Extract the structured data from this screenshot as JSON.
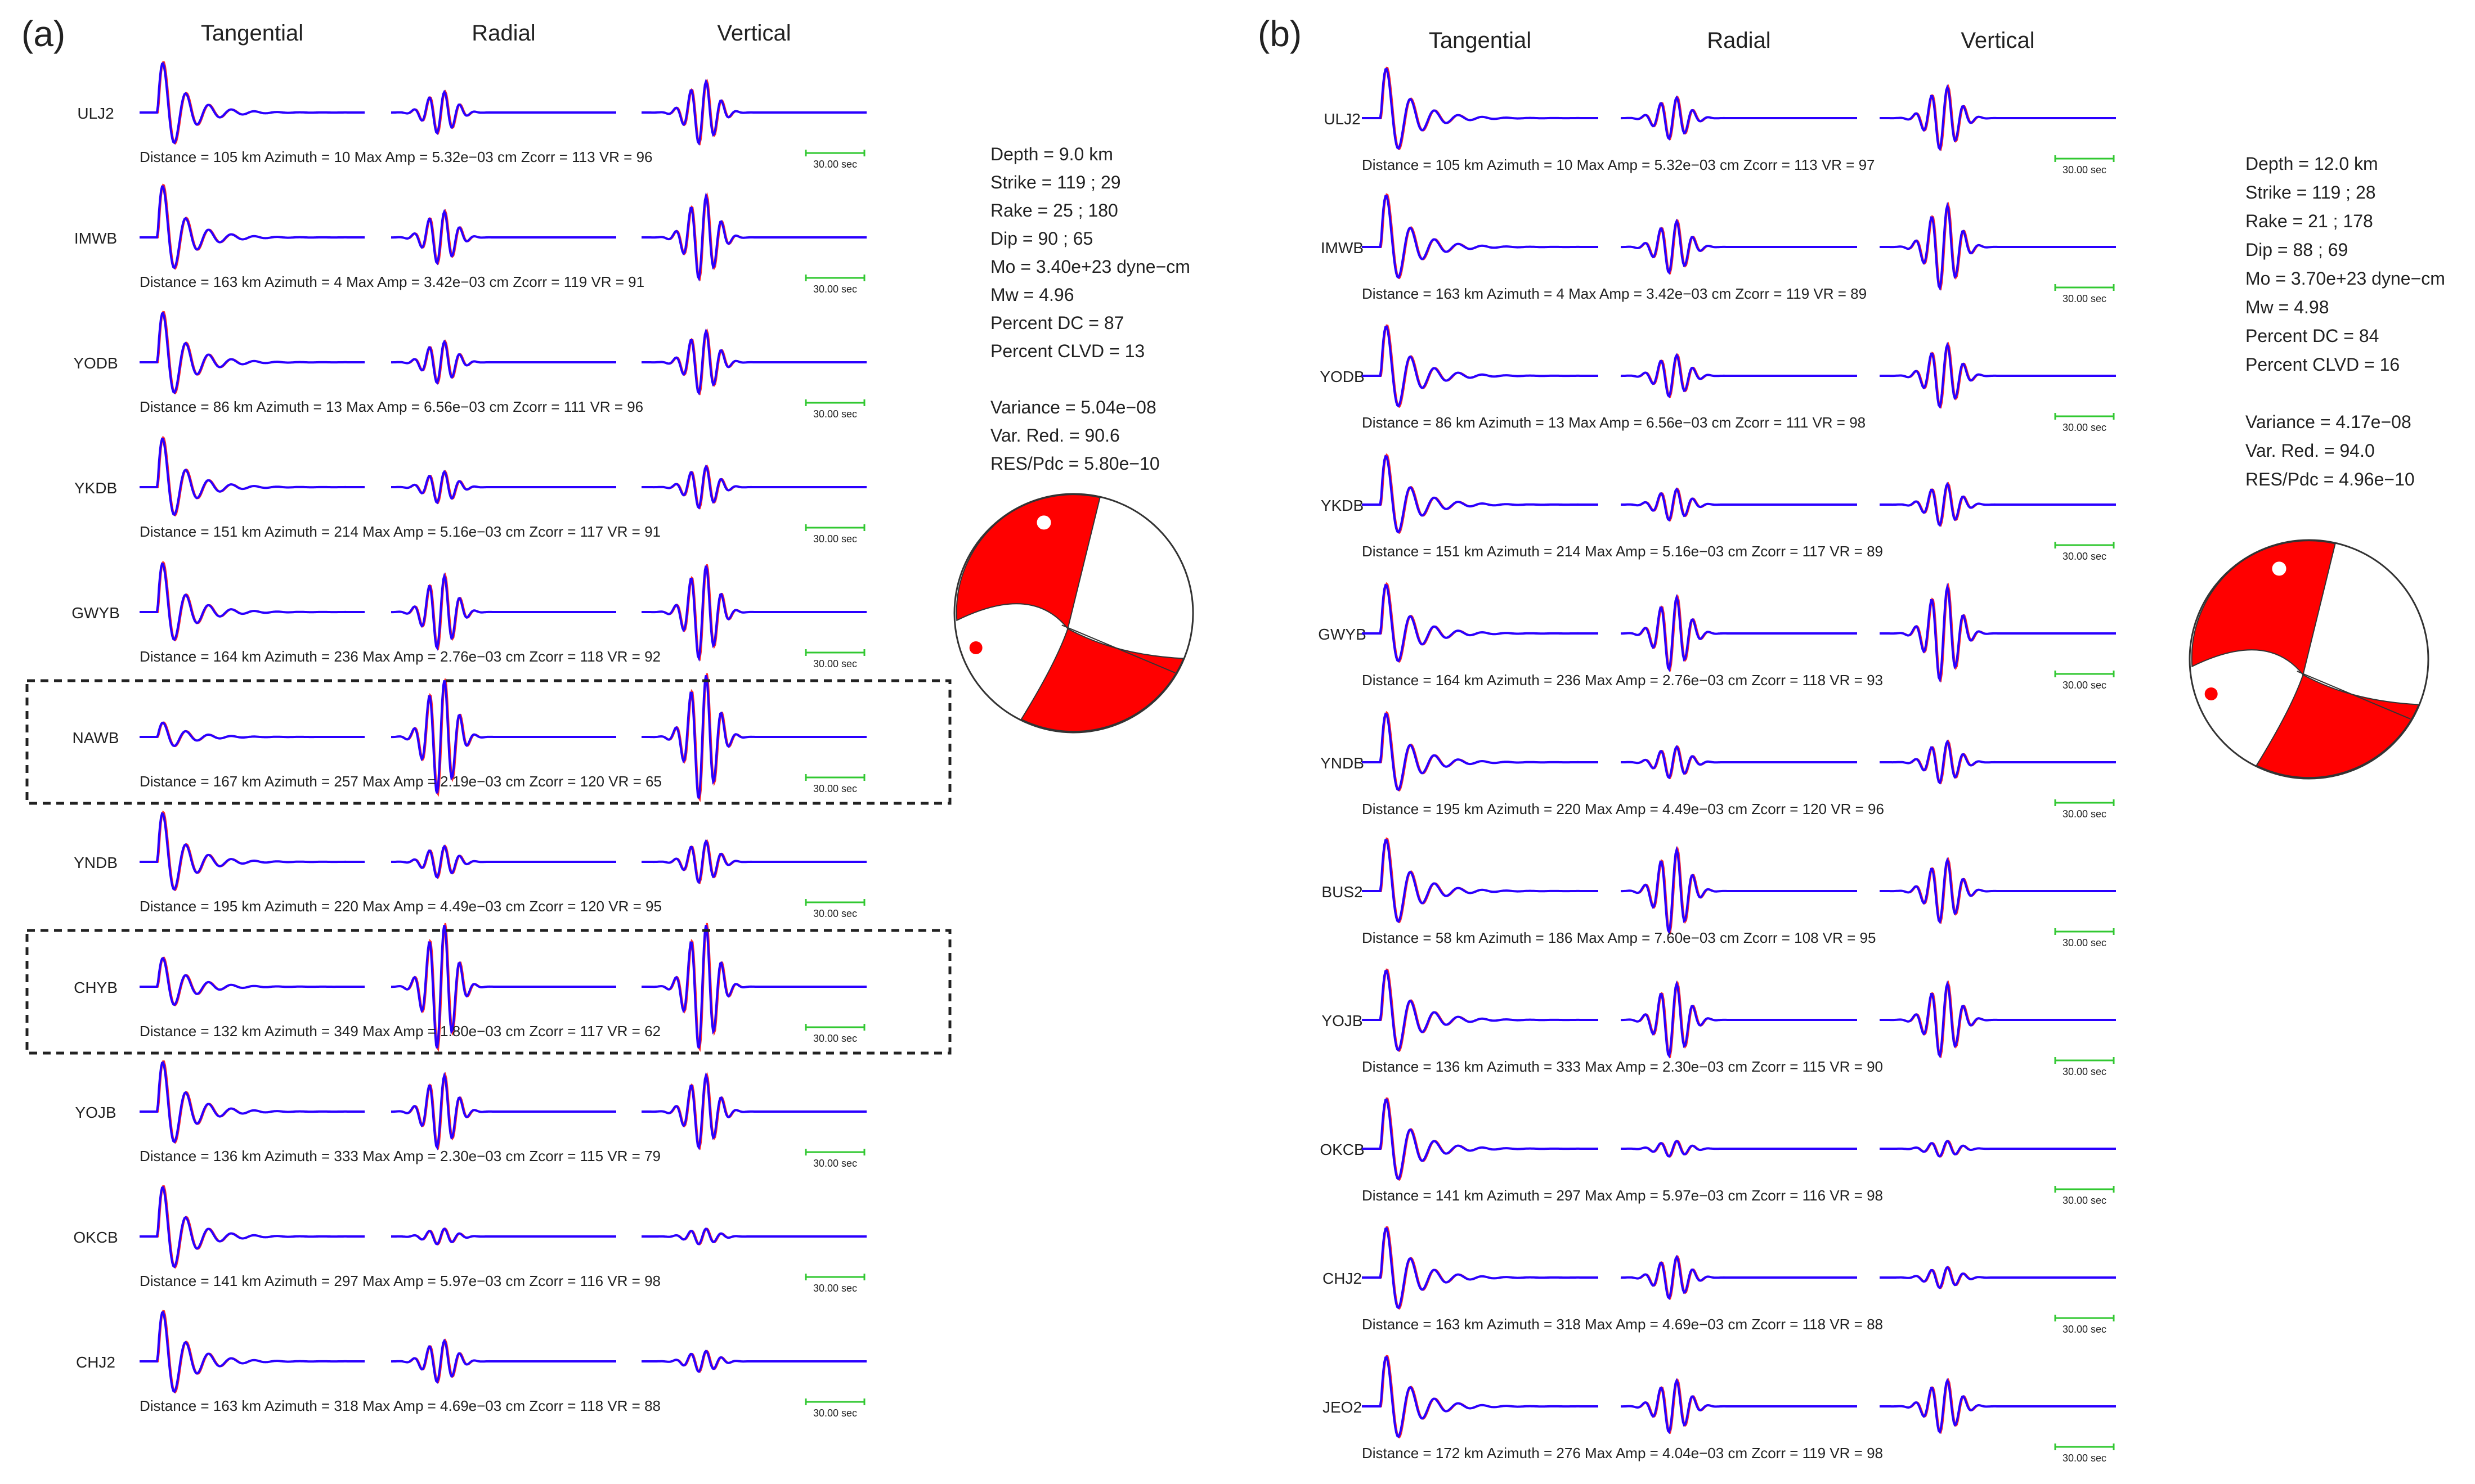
{
  "colors": {
    "synthetic": "#2a00ff",
    "observed": "#ff2a2a",
    "scale_bar": "#32c832",
    "beach_ball": "#ff0000",
    "text": "#222222",
    "box": "#222222"
  },
  "chart_data": {
    "type": "waveform_comparison",
    "panels": [
      {
        "label": "(a)",
        "columns": [
          "Tangential",
          "Radial",
          "Vertical"
        ],
        "scale_label": "30.00 sec",
        "stations": [
          {
            "name": "ULJ2",
            "distance": 105,
            "azimuth": 10,
            "max_amp": "5.32e−03 cm",
            "zcorr": 113,
            "vr": 96,
            "t": [
              1.0,
              1.1
            ],
            "r": 0.4,
            "v": 0.6,
            "highlight": false
          },
          {
            "name": "IMWB",
            "distance": 163,
            "azimuth": 4,
            "max_amp": "3.42e−03 cm",
            "zcorr": 119,
            "vr": 91,
            "t": [
              1.0,
              1.2
            ],
            "r": 0.5,
            "v": 0.8,
            "highlight": false
          },
          {
            "name": "YODB",
            "distance": 86,
            "azimuth": 13,
            "max_amp": "6.56e−03 cm",
            "zcorr": 111,
            "vr": 96,
            "t": [
              1.0,
              1.1
            ],
            "r": 0.4,
            "v": 0.6,
            "highlight": false
          },
          {
            "name": "YKDB",
            "distance": 151,
            "azimuth": 214,
            "max_amp": "5.16e−03 cm",
            "zcorr": 117,
            "vr": 91,
            "t": [
              0.9,
              1.2
            ],
            "r": 0.3,
            "v": 0.4,
            "highlight": false
          },
          {
            "name": "GWYB",
            "distance": 164,
            "azimuth": 236,
            "max_amp": "2.76e−03 cm",
            "zcorr": 118,
            "vr": 92,
            "t": [
              0.9,
              1.2
            ],
            "r": 0.7,
            "v": 0.9,
            "highlight": false
          },
          {
            "name": "NAWB",
            "distance": 167,
            "azimuth": 257,
            "max_amp": "2.19e−03 cm",
            "zcorr": 120,
            "vr": 65,
            "t": [
              0.3,
              0.3
            ],
            "r": 1.1,
            "v": 1.2,
            "highlight": true
          },
          {
            "name": "YNDB",
            "distance": 195,
            "azimuth": 220,
            "max_amp": "4.49e−03 cm",
            "zcorr": 120,
            "vr": 95,
            "t": [
              0.9,
              1.2
            ],
            "r": 0.3,
            "v": 0.4,
            "highlight": false
          },
          {
            "name": "CHYB",
            "distance": 132,
            "azimuth": 349,
            "max_amp": "1.80e−03 cm",
            "zcorr": 117,
            "vr": 62,
            "t": [
              0.6,
              0.6
            ],
            "r": 1.2,
            "v": 1.2,
            "highlight": true
          },
          {
            "name": "YOJB",
            "distance": 136,
            "azimuth": 333,
            "max_amp": "2.30e−03 cm",
            "zcorr": 115,
            "vr": 79,
            "t": [
              1.0,
              1.1
            ],
            "r": 0.7,
            "v": 0.7,
            "highlight": false
          },
          {
            "name": "OKCB",
            "distance": 141,
            "azimuth": 297,
            "max_amp": "5.97e−03 cm",
            "zcorr": 116,
            "vr": 98,
            "t": [
              1.0,
              1.1
            ],
            "r": 0.15,
            "v": 0.15,
            "highlight": false
          },
          {
            "name": "CHJ2",
            "distance": 163,
            "azimuth": 318,
            "max_amp": "4.69e−03 cm",
            "zcorr": 118,
            "vr": 88,
            "t": [
              1.0,
              1.1
            ],
            "r": 0.4,
            "v": 0.2,
            "highlight": false
          }
        ],
        "solution": {
          "depth": "Depth = 9.0 km",
          "strike": "Strike = 119 ; 29",
          "rake": "Rake = 25 ; 180",
          "dip": "Dip = 90 ; 65",
          "mo": "Mo = 3.40e+23 dyne−cm",
          "mw": "Mw = 4.96",
          "percent_dc": "Percent DC = 87",
          "percent_clvd": "Percent CLVD = 13",
          "variance": "Variance = 5.04e−08",
          "var_red": "Var. Red. = 90.6",
          "res_pdc": "RES/Pdc = 5.80e−10"
        }
      },
      {
        "label": "(b)",
        "columns": [
          "Tangential",
          "Radial",
          "Vertical"
        ],
        "scale_label": "30.00 sec",
        "stations": [
          {
            "name": "ULJ2",
            "distance": 105,
            "azimuth": 10,
            "max_amp": "5.32e−03 cm",
            "zcorr": 113,
            "vr": 97,
            "t": [
              1.0,
              1.1
            ],
            "r": 0.4,
            "v": 0.6,
            "highlight": false
          },
          {
            "name": "IMWB",
            "distance": 163,
            "azimuth": 4,
            "max_amp": "3.42e−03 cm",
            "zcorr": 119,
            "vr": 89,
            "t": [
              1.0,
              1.2
            ],
            "r": 0.5,
            "v": 0.8,
            "highlight": false
          },
          {
            "name": "YODB",
            "distance": 86,
            "azimuth": 13,
            "max_amp": "6.56e−03 cm",
            "zcorr": 111,
            "vr": 98,
            "t": [
              1.0,
              1.1
            ],
            "r": 0.4,
            "v": 0.6,
            "highlight": false
          },
          {
            "name": "YKDB",
            "distance": 151,
            "azimuth": 214,
            "max_amp": "5.16e−03 cm",
            "zcorr": 117,
            "vr": 89,
            "t": [
              0.9,
              1.2
            ],
            "r": 0.3,
            "v": 0.4,
            "highlight": false
          },
          {
            "name": "GWYB",
            "distance": 164,
            "azimuth": 236,
            "max_amp": "2.76e−03 cm",
            "zcorr": 118,
            "vr": 93,
            "t": [
              0.9,
              1.2
            ],
            "r": 0.7,
            "v": 0.9,
            "highlight": false
          },
          {
            "name": "YNDB",
            "distance": 195,
            "azimuth": 220,
            "max_amp": "4.49e−03 cm",
            "zcorr": 120,
            "vr": 96,
            "t": [
              0.9,
              1.2
            ],
            "r": 0.3,
            "v": 0.4,
            "highlight": false
          },
          {
            "name": "BUS2",
            "distance": 58,
            "azimuth": 186,
            "max_amp": "7.60e−03 cm",
            "zcorr": 108,
            "vr": 95,
            "t": [
              1.0,
              1.2
            ],
            "r": 0.8,
            "v": 0.6,
            "highlight": false
          },
          {
            "name": "YOJB",
            "distance": 136,
            "azimuth": 333,
            "max_amp": "2.30e−03 cm",
            "zcorr": 115,
            "vr": 90,
            "t": [
              1.0,
              1.1
            ],
            "r": 0.7,
            "v": 0.7,
            "highlight": false
          },
          {
            "name": "OKCB",
            "distance": 141,
            "azimuth": 297,
            "max_amp": "5.97e−03 cm",
            "zcorr": 116,
            "vr": 98,
            "t": [
              1.0,
              1.1
            ],
            "r": 0.15,
            "v": 0.15,
            "highlight": false
          },
          {
            "name": "CHJ2",
            "distance": 163,
            "azimuth": 318,
            "max_amp": "4.69e−03 cm",
            "zcorr": 118,
            "vr": 88,
            "t": [
              1.0,
              1.1
            ],
            "r": 0.4,
            "v": 0.2,
            "highlight": false
          },
          {
            "name": "JEO2",
            "distance": 172,
            "azimuth": 276,
            "max_amp": "4.04e−03 cm",
            "zcorr": 119,
            "vr": 98,
            "t": [
              1.0,
              1.1
            ],
            "r": 0.5,
            "v": 0.5,
            "highlight": false
          }
        ],
        "solution": {
          "depth": "Depth = 12.0 km",
          "strike": "Strike = 119 ; 28",
          "rake": "Rake = 21 ; 178",
          "dip": "Dip = 88 ; 69",
          "mo": "Mo = 3.70e+23 dyne−cm",
          "mw": "Mw = 4.98",
          "percent_dc": "Percent DC = 84",
          "percent_clvd": "Percent CLVD = 16",
          "variance": "Variance = 4.17e−08",
          "var_red": "Var. Red. = 94.0",
          "res_pdc": "RES/Pdc = 4.96e−10"
        }
      }
    ]
  }
}
